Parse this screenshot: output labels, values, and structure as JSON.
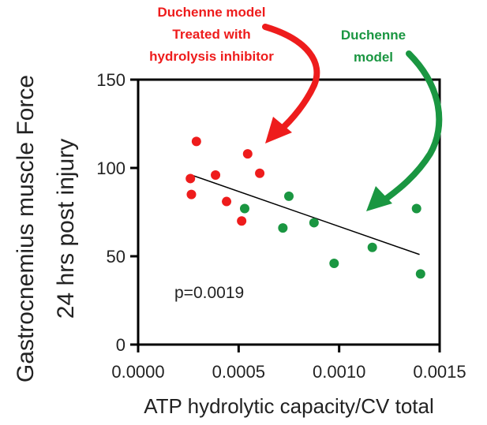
{
  "chart_data": {
    "type": "scatter",
    "xlabel": "ATP hydrolytic capacity/CV total",
    "ylabel_line1": "Gastrocnemius muscle Force",
    "ylabel_line2": "24 hrs post injury",
    "xlim": [
      0,
      0.0015
    ],
    "ylim": [
      0,
      150
    ],
    "x_ticks": [
      "0.0000",
      "0.0005",
      "0.0010",
      "0.0015"
    ],
    "x_tick_values": [
      0,
      0.0005,
      0.001,
      0.0015
    ],
    "y_ticks": [
      "0",
      "50",
      "100",
      "150"
    ],
    "y_tick_values": [
      0,
      50,
      100,
      150
    ],
    "pvalue_text": "p=0.0019",
    "trendline": {
      "x": [
        0.000265,
        0.0014
      ],
      "y": [
        96,
        51
      ]
    },
    "series": [
      {
        "name": "Duchenne model Treated with hydrolysis inhibitor",
        "color": "#ee1c1c",
        "points": [
          {
            "x": 0.00029,
            "y": 115
          },
          {
            "x": 0.00026,
            "y": 94
          },
          {
            "x": 0.000265,
            "y": 85
          },
          {
            "x": 0.000385,
            "y": 96
          },
          {
            "x": 0.00044,
            "y": 81
          },
          {
            "x": 0.000515,
            "y": 70
          },
          {
            "x": 0.000545,
            "y": 108
          },
          {
            "x": 0.000605,
            "y": 97
          }
        ]
      },
      {
        "name": "Duchenne model",
        "color": "#1a9641",
        "points": [
          {
            "x": 0.00053,
            "y": 77
          },
          {
            "x": 0.00075,
            "y": 84
          },
          {
            "x": 0.00072,
            "y": 66
          },
          {
            "x": 0.000875,
            "y": 69
          },
          {
            "x": 0.000975,
            "y": 46
          },
          {
            "x": 0.001165,
            "y": 55
          },
          {
            "x": 0.001385,
            "y": 77
          },
          {
            "x": 0.001405,
            "y": 40
          }
        ]
      }
    ]
  },
  "annotations": {
    "treated": {
      "lines": [
        "Duchenne model",
        "Treated with",
        "hydrolysis inhibitor"
      ],
      "color": "#ee1c1c"
    },
    "untreated": {
      "lines": [
        "Duchenne",
        "model"
      ],
      "color": "#1a9641"
    }
  }
}
